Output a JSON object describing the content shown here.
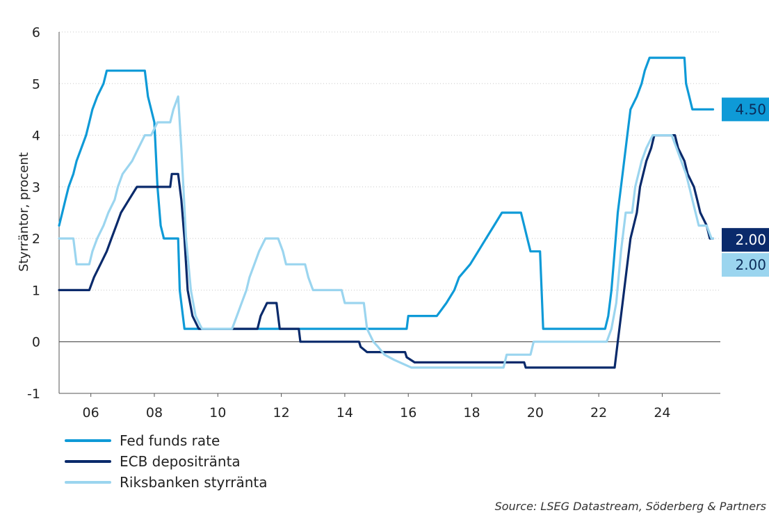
{
  "chart_data": {
    "type": "line",
    "ylabel": "Styrräntor, procent",
    "source": "Source: LSEG Datastream, Söderberg & Partners",
    "xlim": [
      2005.0,
      2025.83
    ],
    "ylim": [
      -1,
      6
    ],
    "y_ticks": [
      "-1",
      "0",
      "1",
      "2",
      "3",
      "4",
      "5",
      "6"
    ],
    "x_ticks": [
      {
        "x": 2006,
        "label": "06"
      },
      {
        "x": 2008,
        "label": "08"
      },
      {
        "x": 2010,
        "label": "10"
      },
      {
        "x": 2012,
        "label": "12"
      },
      {
        "x": 2014,
        "label": "14"
      },
      {
        "x": 2016,
        "label": "16"
      },
      {
        "x": 2018,
        "label": "18"
      },
      {
        "x": 2020,
        "label": "20"
      },
      {
        "x": 2022,
        "label": "22"
      },
      {
        "x": 2024,
        "label": "24"
      }
    ],
    "grid": "horizontal dotted",
    "legend_position": "bottom-left",
    "series": [
      {
        "name": "Fed funds rate",
        "color": "#0e9ad7",
        "end_label": "4.50",
        "points": [
          [
            2005.0,
            2.25
          ],
          [
            2005.1,
            2.5
          ],
          [
            2005.2,
            2.75
          ],
          [
            2005.3,
            3.0
          ],
          [
            2005.45,
            3.25
          ],
          [
            2005.55,
            3.5
          ],
          [
            2005.7,
            3.75
          ],
          [
            2005.85,
            4.0
          ],
          [
            2005.95,
            4.25
          ],
          [
            2006.05,
            4.5
          ],
          [
            2006.2,
            4.75
          ],
          [
            2006.4,
            5.0
          ],
          [
            2006.5,
            5.25
          ],
          [
            2007.7,
            5.25
          ],
          [
            2007.8,
            4.75
          ],
          [
            2007.9,
            4.5
          ],
          [
            2008.0,
            4.25
          ],
          [
            2008.1,
            3.0
          ],
          [
            2008.2,
            2.25
          ],
          [
            2008.3,
            2.0
          ],
          [
            2008.75,
            2.0
          ],
          [
            2008.8,
            1.0
          ],
          [
            2008.95,
            0.25
          ],
          [
            2015.95,
            0.25
          ],
          [
            2016.0,
            0.5
          ],
          [
            2016.9,
            0.5
          ],
          [
            2017.2,
            0.75
          ],
          [
            2017.45,
            1.0
          ],
          [
            2017.6,
            1.25
          ],
          [
            2017.95,
            1.5
          ],
          [
            2018.2,
            1.75
          ],
          [
            2018.45,
            2.0
          ],
          [
            2018.7,
            2.25
          ],
          [
            2018.95,
            2.5
          ],
          [
            2019.55,
            2.5
          ],
          [
            2019.65,
            2.25
          ],
          [
            2019.75,
            2.0
          ],
          [
            2019.85,
            1.75
          ],
          [
            2020.15,
            1.75
          ],
          [
            2020.25,
            0.25
          ],
          [
            2022.2,
            0.25
          ],
          [
            2022.3,
            0.5
          ],
          [
            2022.4,
            1.0
          ],
          [
            2022.5,
            1.75
          ],
          [
            2022.6,
            2.5
          ],
          [
            2022.75,
            3.25
          ],
          [
            2022.9,
            4.0
          ],
          [
            2023.0,
            4.5
          ],
          [
            2023.2,
            4.75
          ],
          [
            2023.35,
            5.0
          ],
          [
            2023.45,
            5.25
          ],
          [
            2023.6,
            5.5
          ],
          [
            2024.7,
            5.5
          ],
          [
            2024.75,
            5.0
          ],
          [
            2024.85,
            4.75
          ],
          [
            2024.95,
            4.5
          ],
          [
            2025.6,
            4.5
          ]
        ]
      },
      {
        "name": "ECB depositränta",
        "color": "#0a2a6b",
        "end_label": "2.00",
        "points": [
          [
            2005.0,
            1.0
          ],
          [
            2005.95,
            1.0
          ],
          [
            2006.1,
            1.25
          ],
          [
            2006.3,
            1.5
          ],
          [
            2006.5,
            1.75
          ],
          [
            2006.65,
            2.0
          ],
          [
            2006.8,
            2.25
          ],
          [
            2006.95,
            2.5
          ],
          [
            2007.2,
            2.75
          ],
          [
            2007.45,
            3.0
          ],
          [
            2008.5,
            3.0
          ],
          [
            2008.55,
            3.25
          ],
          [
            2008.75,
            3.25
          ],
          [
            2008.85,
            2.75
          ],
          [
            2008.95,
            2.0
          ],
          [
            2009.05,
            1.0
          ],
          [
            2009.2,
            0.5
          ],
          [
            2009.4,
            0.25
          ],
          [
            2011.25,
            0.25
          ],
          [
            2011.35,
            0.5
          ],
          [
            2011.55,
            0.75
          ],
          [
            2011.85,
            0.75
          ],
          [
            2011.95,
            0.25
          ],
          [
            2012.55,
            0.25
          ],
          [
            2012.6,
            0.0
          ],
          [
            2014.45,
            0.0
          ],
          [
            2014.5,
            -0.1
          ],
          [
            2014.7,
            -0.2
          ],
          [
            2015.9,
            -0.2
          ],
          [
            2015.95,
            -0.3
          ],
          [
            2016.2,
            -0.4
          ],
          [
            2019.65,
            -0.4
          ],
          [
            2019.7,
            -0.5
          ],
          [
            2022.5,
            -0.5
          ],
          [
            2022.6,
            0.0
          ],
          [
            2022.75,
            0.75
          ],
          [
            2022.9,
            1.5
          ],
          [
            2023.0,
            2.0
          ],
          [
            2023.2,
            2.5
          ],
          [
            2023.3,
            3.0
          ],
          [
            2023.5,
            3.5
          ],
          [
            2023.65,
            3.75
          ],
          [
            2023.75,
            4.0
          ],
          [
            2024.4,
            4.0
          ],
          [
            2024.5,
            3.75
          ],
          [
            2024.7,
            3.5
          ],
          [
            2024.8,
            3.25
          ],
          [
            2025.0,
            3.0
          ],
          [
            2025.1,
            2.75
          ],
          [
            2025.2,
            2.5
          ],
          [
            2025.4,
            2.25
          ],
          [
            2025.5,
            2.0
          ],
          [
            2025.6,
            2.0
          ]
        ]
      },
      {
        "name": "Riksbanken styrränta",
        "color": "#9bd5ef",
        "end_label": "2.00",
        "points": [
          [
            2005.0,
            2.0
          ],
          [
            2005.45,
            2.0
          ],
          [
            2005.55,
            1.5
          ],
          [
            2005.95,
            1.5
          ],
          [
            2006.05,
            1.75
          ],
          [
            2006.2,
            2.0
          ],
          [
            2006.4,
            2.25
          ],
          [
            2006.55,
            2.5
          ],
          [
            2006.75,
            2.75
          ],
          [
            2006.85,
            3.0
          ],
          [
            2007.0,
            3.25
          ],
          [
            2007.3,
            3.5
          ],
          [
            2007.5,
            3.75
          ],
          [
            2007.7,
            4.0
          ],
          [
            2007.9,
            4.0
          ],
          [
            2008.1,
            4.25
          ],
          [
            2008.5,
            4.25
          ],
          [
            2008.6,
            4.5
          ],
          [
            2008.75,
            4.75
          ],
          [
            2008.85,
            3.75
          ],
          [
            2009.0,
            2.0
          ],
          [
            2009.15,
            1.0
          ],
          [
            2009.3,
            0.5
          ],
          [
            2009.5,
            0.25
          ],
          [
            2010.45,
            0.25
          ],
          [
            2010.6,
            0.5
          ],
          [
            2010.75,
            0.75
          ],
          [
            2010.9,
            1.0
          ],
          [
            2011.0,
            1.25
          ],
          [
            2011.15,
            1.5
          ],
          [
            2011.3,
            1.75
          ],
          [
            2011.5,
            2.0
          ],
          [
            2011.9,
            2.0
          ],
          [
            2012.05,
            1.75
          ],
          [
            2012.15,
            1.5
          ],
          [
            2012.75,
            1.5
          ],
          [
            2012.85,
            1.25
          ],
          [
            2013.0,
            1.0
          ],
          [
            2013.9,
            1.0
          ],
          [
            2014.0,
            0.75
          ],
          [
            2014.6,
            0.75
          ],
          [
            2014.7,
            0.25
          ],
          [
            2014.9,
            0.0
          ],
          [
            2015.05,
            -0.1
          ],
          [
            2015.25,
            -0.25
          ],
          [
            2015.55,
            -0.35
          ],
          [
            2016.1,
            -0.5
          ],
          [
            2019.0,
            -0.5
          ],
          [
            2019.1,
            -0.25
          ],
          [
            2019.85,
            -0.25
          ],
          [
            2019.95,
            0.0
          ],
          [
            2022.25,
            0.0
          ],
          [
            2022.4,
            0.25
          ],
          [
            2022.55,
            0.75
          ],
          [
            2022.7,
            1.75
          ],
          [
            2022.85,
            2.5
          ],
          [
            2023.05,
            2.5
          ],
          [
            2023.15,
            3.0
          ],
          [
            2023.35,
            3.5
          ],
          [
            2023.5,
            3.75
          ],
          [
            2023.7,
            4.0
          ],
          [
            2024.3,
            4.0
          ],
          [
            2024.45,
            3.75
          ],
          [
            2024.6,
            3.5
          ],
          [
            2024.75,
            3.25
          ],
          [
            2024.85,
            3.0
          ],
          [
            2024.95,
            2.75
          ],
          [
            2025.05,
            2.5
          ],
          [
            2025.15,
            2.25
          ],
          [
            2025.4,
            2.25
          ],
          [
            2025.55,
            2.0
          ],
          [
            2025.6,
            2.0
          ]
        ]
      }
    ]
  }
}
